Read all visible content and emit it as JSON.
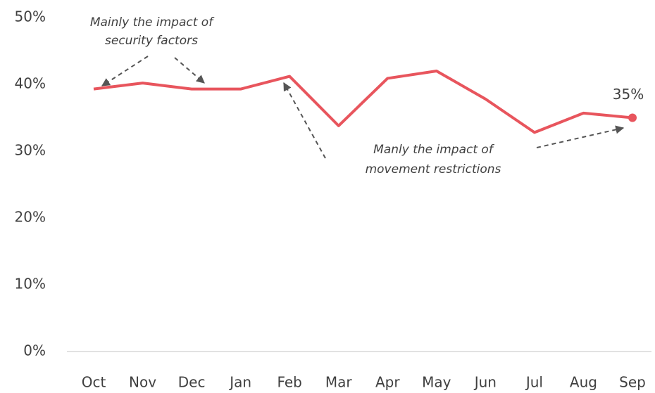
{
  "chart_data": {
    "type": "line",
    "categories": [
      "Oct",
      "Nov",
      "Dec",
      "Jan",
      "Feb",
      "Mar",
      "Apr",
      "May",
      "Jun",
      "Jul",
      "Aug",
      "Sep"
    ],
    "series": [
      {
        "color": "#e8555d",
        "values": [
          39.3,
          40.2,
          39.3,
          39.3,
          41.2,
          33.8,
          40.9,
          42.0,
          37.8,
          32.8,
          35.7,
          35
        ],
        "value_labels": [
          null,
          null,
          null,
          null,
          null,
          null,
          null,
          null,
          null,
          null,
          null,
          "35%"
        ]
      }
    ],
    "ylim": [
      0,
      50
    ],
    "yticks": [
      {
        "value": 0,
        "label": "0%"
      },
      {
        "value": 10,
        "label": "10%"
      },
      {
        "value": 20,
        "label": "20%"
      },
      {
        "value": 30,
        "label": "30%"
      },
      {
        "value": 40,
        "label": "40%"
      },
      {
        "value": 50,
        "label": "50%"
      }
    ],
    "grid": false,
    "annotations": [
      {
        "lines": [
          "Mainly the impact of",
          "security factors"
        ]
      },
      {
        "lines": [
          "Manly the impact of",
          "movement restrictions"
        ]
      }
    ]
  }
}
